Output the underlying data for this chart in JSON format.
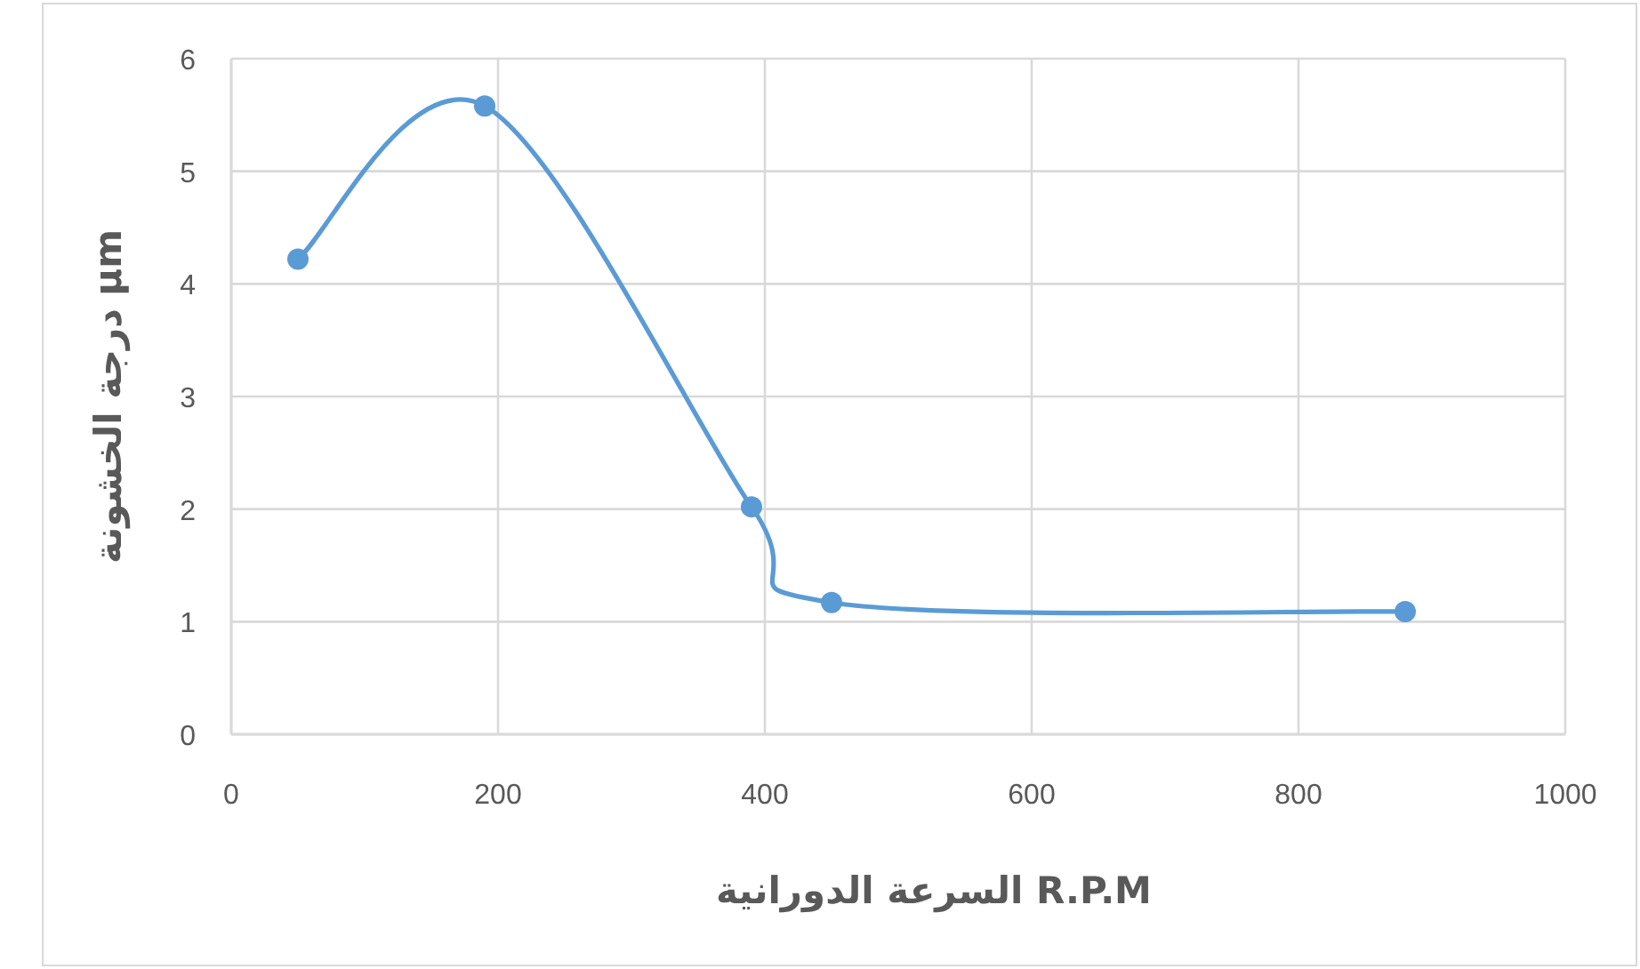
{
  "chart_data": {
    "type": "line",
    "xlabel": "R.P.M السرعة الدورانية",
    "ylabel": "μm درجة الخشونة",
    "x": [
      50,
      190,
      390,
      450,
      880
    ],
    "series": [
      {
        "color": "#5b9bd5",
        "values": [
          4.22,
          5.58,
          2.02,
          1.17,
          1.09
        ]
      }
    ],
    "xlim": [
      0,
      1000
    ],
    "xticks": [
      0,
      200,
      400,
      600,
      800,
      1000
    ],
    "ylim": [
      0,
      6
    ],
    "yticks": [
      0,
      1,
      2,
      3,
      4,
      5,
      6
    ],
    "grid": true,
    "marker": "circle",
    "line_style": "solid"
  }
}
